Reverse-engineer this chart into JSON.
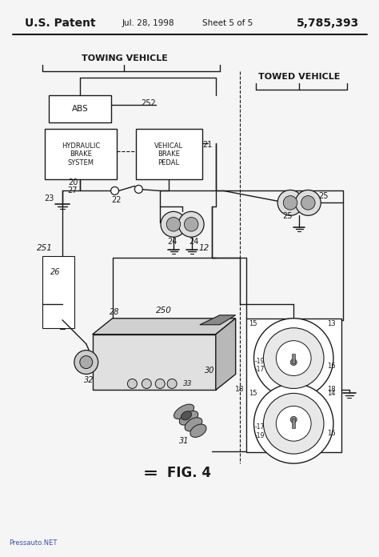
{
  "bg_color": "#f5f5f5",
  "line_color": "#1a1a1a",
  "title_left": "U.S. Patent",
  "title_date": "Jul. 28, 1998",
  "title_sheet": "Sheet 5 of 5",
  "title_patent": "5,785,393",
  "watermark": "Pressauto.NET",
  "fig_label": "FIG. 4",
  "towing_label": "TOWING VEHICLE",
  "towed_label": "TOWED VEHICLE",
  "abs_label": "ABS",
  "hbs_label": "HYDRAULIC\nBRAKE\nSYSTEM",
  "vbp_label": "VEHICAL\nBRAKE\nPEDAL"
}
